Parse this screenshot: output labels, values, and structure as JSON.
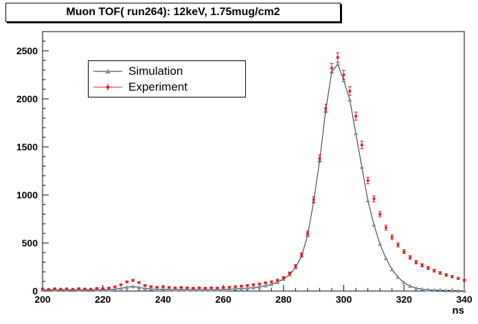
{
  "title": "Muon TOF( run264): 12keV, 1.75mug/cm2",
  "chart_data": {
    "type": "line",
    "title": "Muon TOF( run264): 12keV, 1.75mug/cm2",
    "xlabel": "ns",
    "ylabel": "",
    "xlim": [
      200,
      340
    ],
    "ylim": [
      0,
      2700
    ],
    "x_ticks": [
      200,
      220,
      240,
      260,
      280,
      300,
      320,
      340
    ],
    "x_minor_step": 4,
    "y_ticks": [
      0,
      500,
      1000,
      1500,
      2000,
      2500
    ],
    "y_minor_step": 100,
    "grid": false,
    "legend_position": "upper-left-inside",
    "error_model": "sqrt",
    "colors": {
      "simulation_line": "#2a2a2a",
      "simulation_marker": "#7f93a8",
      "experiment": "#e51b1b",
      "frame": "#000000"
    },
    "x": [
      200,
      202,
      204,
      206,
      208,
      210,
      212,
      214,
      216,
      218,
      220,
      222,
      224,
      226,
      228,
      230,
      232,
      234,
      236,
      238,
      240,
      242,
      244,
      246,
      248,
      250,
      252,
      254,
      256,
      258,
      260,
      262,
      264,
      266,
      268,
      270,
      272,
      274,
      276,
      278,
      280,
      282,
      284,
      286,
      288,
      290,
      292,
      294,
      296,
      298,
      300,
      302,
      304,
      306,
      308,
      310,
      312,
      314,
      316,
      318,
      320,
      322,
      324,
      326,
      328,
      330,
      332,
      334,
      336,
      338,
      340
    ],
    "series": [
      {
        "name": "Simulation",
        "marker": "triangle",
        "values": [
          12,
          10,
          14,
          11,
          13,
          10,
          14,
          12,
          10,
          15,
          13,
          16,
          20,
          28,
          40,
          48,
          38,
          26,
          22,
          18,
          20,
          17,
          15,
          17,
          15,
          14,
          16,
          14,
          16,
          15,
          17,
          19,
          22,
          26,
          30,
          36,
          44,
          56,
          70,
          92,
          125,
          170,
          245,
          365,
          580,
          930,
          1360,
          1880,
          2280,
          2360,
          2190,
          1990,
          1640,
          1290,
          940,
          690,
          490,
          340,
          225,
          145,
          88,
          52,
          32,
          20,
          14,
          10,
          8,
          6,
          5,
          4,
          3
        ]
      },
      {
        "name": "Experiment",
        "marker": "square-with-error-bars",
        "values": [
          22,
          18,
          25,
          20,
          24,
          19,
          26,
          22,
          20,
          28,
          26,
          32,
          45,
          65,
          95,
          112,
          88,
          58,
          46,
          40,
          44,
          38,
          34,
          38,
          34,
          30,
          34,
          30,
          34,
          32,
          36,
          40,
          46,
          52,
          58,
          66,
          74,
          86,
          96,
          112,
          140,
          185,
          260,
          380,
          600,
          950,
          1380,
          1900,
          2320,
          2430,
          2250,
          2080,
          1820,
          1520,
          1150,
          960,
          800,
          660,
          560,
          480,
          410,
          350,
          300,
          268,
          240,
          212,
          188,
          168,
          150,
          132,
          112
        ]
      }
    ]
  }
}
